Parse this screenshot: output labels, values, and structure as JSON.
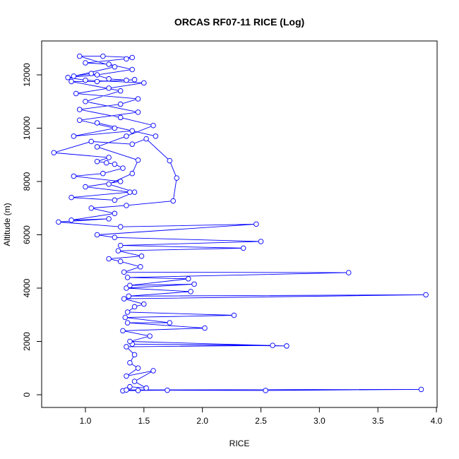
{
  "chart_data": {
    "type": "line",
    "title": "ORCAS RF07-11 RICE (Log)",
    "x_label": "RICE",
    "y_label": "Altitude (m)",
    "x": [
      1.32,
      1.45,
      1.7,
      2.54,
      3.87,
      1.35,
      1.38,
      1.52,
      1.42,
      1.58,
      1.35,
      1.45,
      1.38,
      1.42,
      1.35,
      2.6,
      1.4,
      2.72,
      1.38,
      1.55,
      1.32,
      2.02,
      1.36,
      1.72,
      1.34,
      2.27,
      1.36,
      1.42,
      1.5,
      1.33,
      3.91,
      1.37,
      1.9,
      1.35,
      1.93,
      1.38,
      1.88,
      1.36,
      3.25,
      1.33,
      1.47,
      1.3,
      1.2,
      1.48,
      1.28,
      2.35,
      1.3,
      2.5,
      1.25,
      1.1,
      2.46,
      1.3,
      0.77,
      1.2,
      0.88,
      1.25,
      1.05,
      1.35,
      1.75,
      1.78,
      1.72,
      1.52,
      1.4,
      1.05,
      0.73,
      1.2,
      1.1,
      1.18,
      1.25,
      1.32,
      1.15,
      0.9,
      1.3,
      1.0,
      1.38,
      0.88,
      1.25,
      1.42,
      1.2,
      1.4,
      1.45,
      1.1,
      1.35,
      1.58,
      1.3,
      0.95,
      1.3,
      1.45,
      0.92,
      1.2,
      1.5,
      1.0,
      0.85,
      1.1,
      1.4,
      1.2,
      1.0,
      1.35,
      1.4,
      1.15,
      0.95,
      1.25,
      0.9,
      1.05,
      1.2,
      1.35,
      1.42,
      1.1,
      0.88,
      1.3,
      1.0,
      1.45,
      0.95,
      1.25,
      0.9,
      1.4,
      1.1,
      1.6
    ],
    "series": [
      {
        "color": "#0000ff",
        "values": [
          150,
          160,
          170,
          160,
          200,
          180,
          300,
          250,
          500,
          900,
          700,
          1000,
          1200,
          1500,
          1800,
          1850,
          1900,
          1830,
          2000,
          2200,
          2400,
          2500,
          2700,
          2700,
          2900,
          2980,
          3100,
          3300,
          3400,
          3600,
          3750,
          3700,
          3870,
          4000,
          4150,
          4100,
          4350,
          4400,
          4580,
          4600,
          4800,
          5000,
          5100,
          5200,
          5400,
          5500,
          5600,
          5750,
          5900,
          6000,
          6400,
          6300,
          6480,
          6600,
          6550,
          6800,
          7000,
          7100,
          7270,
          8130,
          8780,
          9600,
          9400,
          9500,
          9080,
          8900,
          8750,
          8700,
          8650,
          8500,
          8300,
          8200,
          8000,
          7800,
          7600,
          7400,
          7300,
          7600,
          7900,
          8300,
          8800,
          9300,
          9700,
          10100,
          10400,
          10700,
          10900,
          11100,
          11300,
          11500,
          11700,
          11800,
          11900,
          12000,
          12200,
          12400,
          12450,
          12600,
          12650,
          12700,
          12700,
          12300,
          11950,
          12050,
          11850,
          11800,
          11820,
          11750,
          11750,
          11400,
          11000,
          10600,
          10300,
          10000,
          9700,
          9900,
          10200,
          9700
        ]
      }
    ],
    "xlim": [
      0.626,
      4.006
    ],
    "ylim": [
      -477,
      13272
    ],
    "xticks": [
      {
        "value": 1,
        "label": "1.0"
      },
      {
        "value": 1.5,
        "label": "1.5"
      },
      {
        "value": 2,
        "label": "2.0"
      },
      {
        "value": 2.5,
        "label": "2.5"
      },
      {
        "value": 3,
        "label": "3.0"
      },
      {
        "value": 3.5,
        "label": "3.5"
      },
      {
        "value": 4,
        "label": "4.0"
      }
    ],
    "yticks": [
      0,
      2000,
      4000,
      6000,
      8000,
      10000,
      12000
    ]
  }
}
